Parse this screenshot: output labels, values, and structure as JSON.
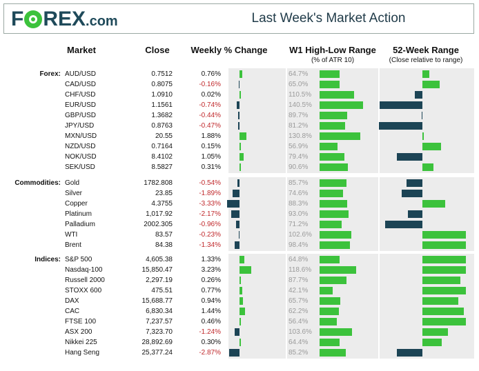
{
  "header": {
    "logo_text": "FOREX",
    "logo_suffix": ".com",
    "title": "Last Week's Market Action"
  },
  "columns": {
    "market": "Market",
    "close": "Close",
    "weekly": "Weekly % Change",
    "w1": "W1 High-Low Range",
    "w1_sub": "(% of ATR 10)",
    "wk52": "52-Week Range",
    "wk52_sub": "(Close relative to range)"
  },
  "colors": {
    "positive": "#3cc23c",
    "negative": "#1c4455",
    "neg_text": "#c0282b",
    "brand": "#1f4a5a"
  },
  "chart_data": {
    "type": "table",
    "title": "Last Week's Market Action",
    "groups": [
      {
        "label": "Forex:",
        "rows": [
          {
            "market": "AUD/USD",
            "close": "0.7512",
            "weekly": "0.76%",
            "weekly_value": 0.76,
            "w1": "64.7%",
            "w1_value": 64.7,
            "wk52": 0.16
          },
          {
            "market": "CAD/USD",
            "close": "0.8075",
            "weekly": "-0.16%",
            "weekly_value": -0.16,
            "w1": "65.0%",
            "w1_value": 65.0,
            "wk52": 0.39
          },
          {
            "market": "CHF/USD",
            "close": "1.0910",
            "weekly": "0.02%",
            "weekly_value": 0.02,
            "w1": "110.5%",
            "w1_value": 110.5,
            "wk52": -0.17
          },
          {
            "market": "EUR/USD",
            "close": "1.1561",
            "weekly": "-0.74%",
            "weekly_value": -0.74,
            "w1": "140.5%",
            "w1_value": 140.5,
            "wk52": -0.98
          },
          {
            "market": "GBP/USD",
            "close": "1.3682",
            "weekly": "-0.44%",
            "weekly_value": -0.44,
            "w1": "89.7%",
            "w1_value": 89.7,
            "wk52": -0.02
          },
          {
            "market": "JPY/USD",
            "close": "0.8763",
            "weekly": "-0.47%",
            "weekly_value": -0.47,
            "w1": "81.2%",
            "w1_value": 81.2,
            "wk52": -1.0
          },
          {
            "market": "MXN/USD",
            "close": "20.55",
            "weekly": "1.88%",
            "weekly_value": 1.88,
            "w1": "130.8%",
            "w1_value": 130.8,
            "wk52": 0.0
          },
          {
            "market": "NZD/USD",
            "close": "0.7164",
            "weekly": "0.15%",
            "weekly_value": 0.15,
            "w1": "56.9%",
            "w1_value": 56.9,
            "wk52": 0.43
          },
          {
            "market": "NOK/USD",
            "close": "8.4102",
            "weekly": "1.05%",
            "weekly_value": 1.05,
            "w1": "79.4%",
            "w1_value": 79.4,
            "wk52": -0.58
          },
          {
            "market": "SEK/USD",
            "close": "8.5827",
            "weekly": "0.31%",
            "weekly_value": 0.31,
            "w1": "90.6%",
            "w1_value": 90.6,
            "wk52": 0.25
          }
        ]
      },
      {
        "label": "Commodities:",
        "rows": [
          {
            "market": "Gold",
            "close": "1782.808",
            "weekly": "-0.54%",
            "weekly_value": -0.54,
            "w1": "85.7%",
            "w1_value": 85.7,
            "wk52": -0.37
          },
          {
            "market": "Silver",
            "close": "23.85",
            "weekly": "-1.89%",
            "weekly_value": -1.89,
            "w1": "74.6%",
            "w1_value": 74.6,
            "wk52": -0.48
          },
          {
            "market": "Copper",
            "close": "4.3755",
            "weekly": "-3.33%",
            "weekly_value": -3.33,
            "w1": "88.3%",
            "w1_value": 88.3,
            "wk52": 0.52
          },
          {
            "market": "Platinum",
            "close": "1,017.92",
            "weekly": "-2.17%",
            "weekly_value": -2.17,
            "w1": "93.0%",
            "w1_value": 93.0,
            "wk52": -0.33
          },
          {
            "market": "Palladium",
            "close": "2002.305",
            "weekly": "-0.96%",
            "weekly_value": -0.96,
            "w1": "71.2%",
            "w1_value": 71.2,
            "wk52": -0.85
          },
          {
            "market": "WTI",
            "close": "83.57",
            "weekly": "-0.23%",
            "weekly_value": -0.23,
            "w1": "102.6%",
            "w1_value": 102.6,
            "wk52": 1.0
          },
          {
            "market": "Brent",
            "close": "84.38",
            "weekly": "-1.34%",
            "weekly_value": -1.34,
            "w1": "98.4%",
            "w1_value": 98.4,
            "wk52": 1.0
          }
        ]
      },
      {
        "label": "Indices:",
        "rows": [
          {
            "market": "S&P 500",
            "close": "4,605.38",
            "weekly": "1.33%",
            "weekly_value": 1.33,
            "w1": "64.8%",
            "w1_value": 64.8,
            "wk52": 1.0
          },
          {
            "market": "Nasdaq-100",
            "close": "15,850.47",
            "weekly": "3.23%",
            "weekly_value": 3.23,
            "w1": "118.6%",
            "w1_value": 118.6,
            "wk52": 1.0
          },
          {
            "market": "Russell 2000",
            "close": "2,297.19",
            "weekly": "0.26%",
            "weekly_value": 0.26,
            "w1": "87.7%",
            "w1_value": 87.7,
            "wk52": 0.88
          },
          {
            "market": "STOXX 600",
            "close": "475.51",
            "weekly": "0.77%",
            "weekly_value": 0.77,
            "w1": "42.1%",
            "w1_value": 42.1,
            "wk52": 1.0
          },
          {
            "market": "DAX",
            "close": "15,688.77",
            "weekly": "0.94%",
            "weekly_value": 0.94,
            "w1": "65.7%",
            "w1_value": 65.7,
            "wk52": 0.83
          },
          {
            "market": "CAC",
            "close": "6,830.34",
            "weekly": "1.44%",
            "weekly_value": 1.44,
            "w1": "62.2%",
            "w1_value": 62.2,
            "wk52": 0.95
          },
          {
            "market": "FTSE 100",
            "close": "7,237.57",
            "weekly": "0.46%",
            "weekly_value": 0.46,
            "w1": "56.4%",
            "w1_value": 56.4,
            "wk52": 1.0
          },
          {
            "market": "ASX 200",
            "close": "7,323.70",
            "weekly": "-1.24%",
            "weekly_value": -1.24,
            "w1": "103.6%",
            "w1_value": 103.6,
            "wk52": 0.58
          },
          {
            "market": "Nikkei 225",
            "close": "28,892.69",
            "weekly": "0.30%",
            "weekly_value": 0.3,
            "w1": "64.4%",
            "w1_value": 64.4,
            "wk52": 0.44
          },
          {
            "market": "Hang Seng",
            "close": "25,377.24",
            "weekly": "-2.87%",
            "weekly_value": -2.87,
            "w1": "85.2%",
            "w1_value": 85.2,
            "wk52": -0.58
          }
        ]
      }
    ]
  }
}
